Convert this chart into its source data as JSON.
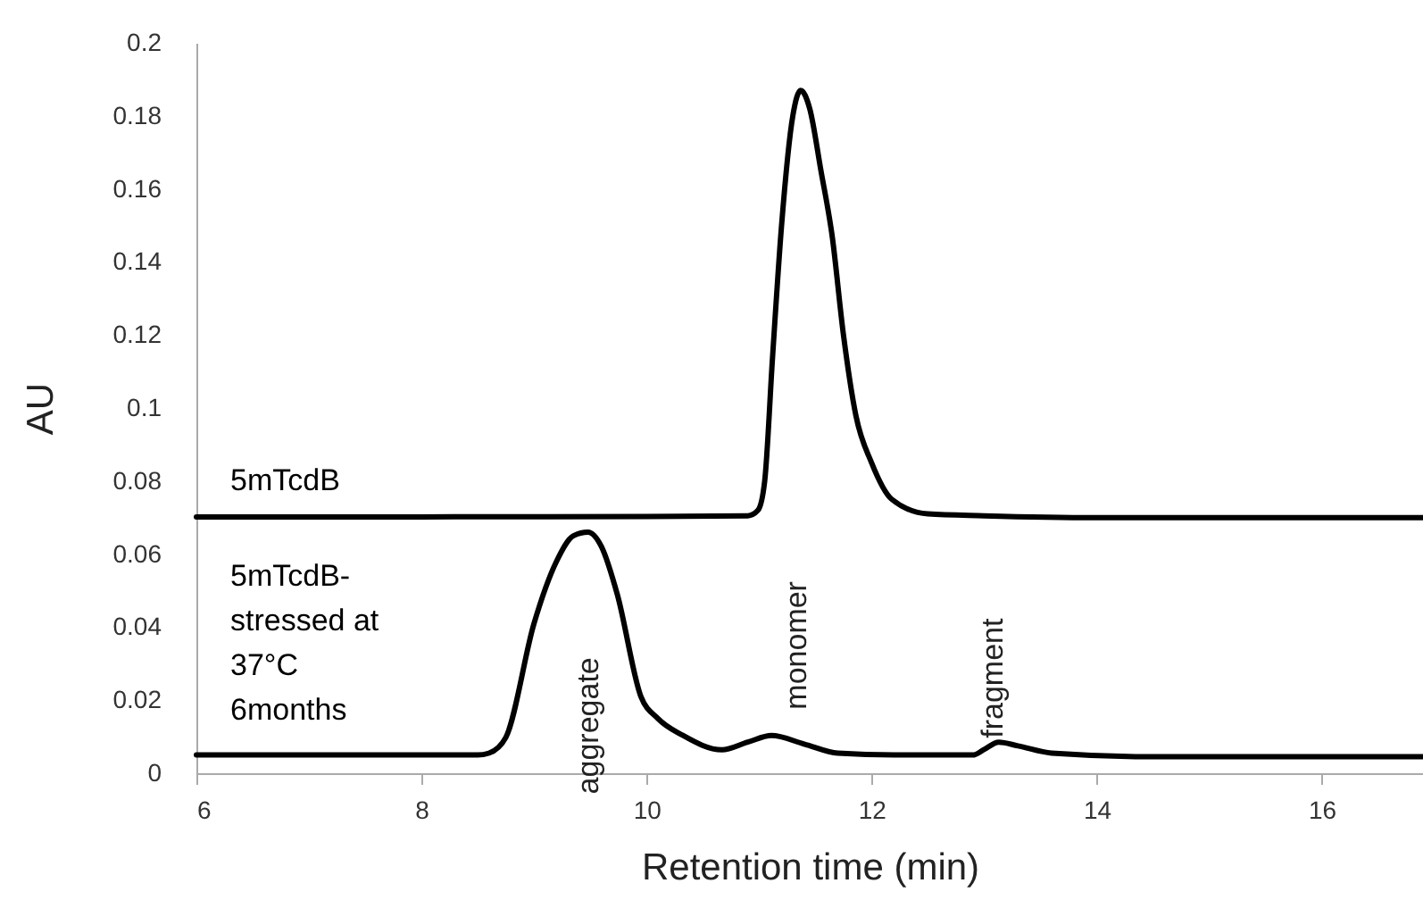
{
  "chart_data": {
    "type": "line",
    "xlabel": "Retention time (min)",
    "ylabel": "AU",
    "xlim": [
      6,
      16.9
    ],
    "xticks": [
      6,
      8,
      10,
      12,
      14,
      16
    ],
    "ylim": [
      0,
      0.2
    ],
    "yticks": [
      0,
      0.02,
      0.04,
      0.06,
      0.08,
      0.1,
      0.12,
      0.14,
      0.16,
      0.18,
      0.2
    ],
    "grid": false,
    "legend": false,
    "line_style": "solid",
    "marker": "none",
    "series": [
      {
        "name": "5mTcdB",
        "color": "#000000",
        "x": [
          6,
          8,
          10,
          10.9,
          10.99,
          11.05,
          11.12,
          11.2,
          11.3,
          11.37,
          11.45,
          11.55,
          11.65,
          11.75,
          11.86,
          12.0,
          12.18,
          12.5,
          13,
          14,
          16.9
        ],
        "values": [
          0.0702,
          0.0702,
          0.0703,
          0.0705,
          0.072,
          0.08,
          0.114,
          0.15,
          0.18,
          0.187,
          0.182,
          0.165,
          0.147,
          0.12,
          0.098,
          0.085,
          0.075,
          0.071,
          0.0705,
          0.07,
          0.07
        ]
      },
      {
        "name": "5mTcdB-\nstressed at\n37°C\n6months",
        "color": "#000000",
        "x": [
          6,
          8.5,
          8.6,
          8.75,
          9.0,
          9.2,
          9.35,
          9.48,
          9.6,
          9.74,
          9.95,
          10.1,
          10.32,
          10.67,
          10.9,
          11.11,
          11.4,
          11.7,
          12.2,
          12.9,
          13.0,
          13.13,
          13.3,
          13.6,
          14.5,
          16.9
        ],
        "values": [
          0.005,
          0.005,
          0.0055,
          0.0098,
          0.041,
          0.058,
          0.065,
          0.066,
          0.062,
          0.049,
          0.021,
          0.015,
          0.0104,
          0.0064,
          0.0085,
          0.0103,
          0.008,
          0.0055,
          0.005,
          0.005,
          0.0065,
          0.0085,
          0.0075,
          0.0055,
          0.0045,
          0.0045
        ]
      }
    ],
    "annotations": [
      "aggregate",
      "monomer",
      "fragment"
    ]
  }
}
